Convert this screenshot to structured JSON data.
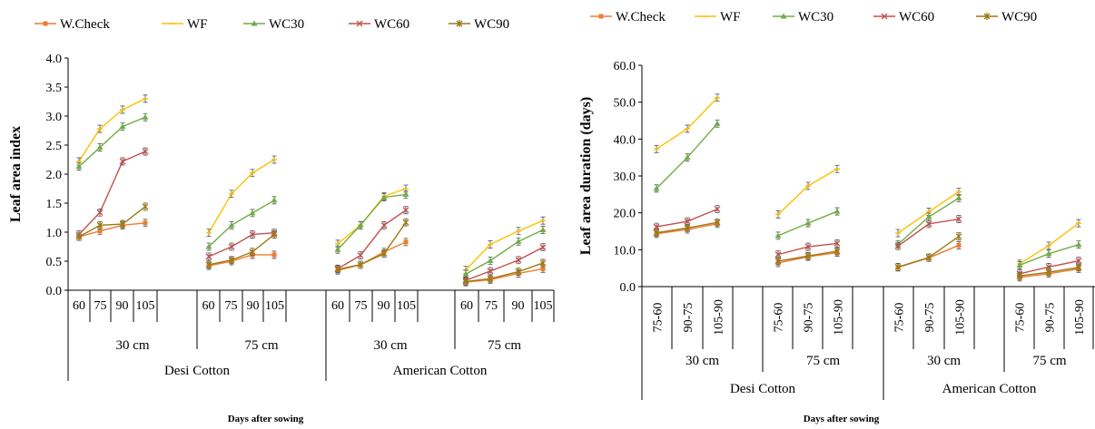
{
  "colors": {
    "W.Check": "#ED7D31",
    "WF": "#FFC000",
    "WC30": "#70AD47",
    "WC60": "#C0504D",
    "WC90": "#9C7A17"
  },
  "chart_data": [
    {
      "type": "line",
      "ylabel": "Leaf area index",
      "xlabel": "Days after sowing",
      "ylim": [
        0,
        4
      ],
      "yticks": [
        "0.0",
        "0.5",
        "1.0",
        "1.5",
        "2.0",
        "2.5",
        "3.0",
        "3.5",
        "4.0"
      ],
      "legend": [
        "W.Check",
        "WF",
        "WC30",
        "WC60",
        "WC90"
      ],
      "crops": [
        "Desi Cotton",
        "American Cotton"
      ],
      "groups": [
        {
          "spacing": "30 cm",
          "ticks": [
            "60",
            "75",
            "90",
            "105"
          ],
          "series": {
            "W.Check": [
              0.92,
              1.02,
              1.12,
              1.16
            ],
            "WF": [
              2.22,
              2.78,
              3.11,
              3.3
            ],
            "WC30": [
              2.13,
              2.46,
              2.82,
              2.98
            ],
            "WC60": [
              0.96,
              1.34,
              2.22,
              2.39
            ],
            "WC90": [
              0.92,
              1.12,
              1.14,
              1.44
            ]
          }
        },
        {
          "spacing": "75 cm",
          "ticks": [
            "60",
            "75",
            "90",
            "105"
          ],
          "series": {
            "W.Check": [
              0.42,
              0.5,
              0.61,
              0.61
            ],
            "WF": [
              0.99,
              1.66,
              2.02,
              2.25
            ],
            "WC30": [
              0.75,
              1.12,
              1.33,
              1.55
            ],
            "WC60": [
              0.58,
              0.75,
              0.96,
              0.99
            ],
            "WC90": [
              0.44,
              0.52,
              0.66,
              0.96
            ]
          }
        },
        {
          "spacing": "30 cm",
          "ticks": [
            "60",
            "75",
            "90",
            "105"
          ],
          "series": {
            "W.Check": [
              0.34,
              0.44,
              0.66,
              0.83
            ],
            "WF": [
              0.8,
              1.12,
              1.62,
              1.75
            ],
            "WC30": [
              0.7,
              1.12,
              1.6,
              1.65
            ],
            "WC60": [
              0.37,
              0.6,
              1.12,
              1.38
            ],
            "WC90": [
              0.36,
              0.44,
              0.63,
              1.17
            ]
          }
        },
        {
          "spacing": "75 cm",
          "ticks": [
            "60",
            "75",
            "90",
            "105"
          ],
          "series": {
            "W.Check": [
              0.14,
              0.18,
              0.29,
              0.37
            ],
            "WF": [
              0.35,
              0.79,
              1.02,
              1.2
            ],
            "WC30": [
              0.28,
              0.51,
              0.84,
              1.04
            ],
            "WC60": [
              0.17,
              0.33,
              0.52,
              0.74
            ],
            "WC90": [
              0.15,
              0.2,
              0.32,
              0.47
            ]
          }
        }
      ]
    },
    {
      "type": "line",
      "ylabel": "Leaf area duration  (days)",
      "xlabel": "Days after sowing",
      "ylim": [
        0,
        60
      ],
      "yticks": [
        "0.0",
        "10.0",
        "20.0",
        "30.0",
        "40.0",
        "50.0",
        "60.0"
      ],
      "legend": [
        "W.Check",
        "WF",
        "WC30",
        "WC60",
        "WC90"
      ],
      "crops": [
        "Desi Cotton",
        "American Cotton"
      ],
      "groups": [
        {
          "spacing": "30 cm",
          "ticks": [
            "75-60",
            "90-75",
            "105-90"
          ],
          "series": {
            "W.Check": [
              14.3,
              15.5,
              17.0
            ],
            "WF": [
              37.3,
              42.8,
              51.2
            ],
            "WC30": [
              26.6,
              35.0,
              44.2
            ],
            "WC60": [
              16.2,
              17.7,
              21.0
            ],
            "WC90": [
              14.6,
              15.9,
              17.4
            ]
          }
        },
        {
          "spacing": "75 cm",
          "ticks": [
            "75-60",
            "90-75",
            "105-90"
          ],
          "series": {
            "W.Check": [
              6.4,
              8.1,
              9.2
            ],
            "WF": [
              19.6,
              27.3,
              31.9
            ],
            "WC30": [
              13.8,
              17.2,
              20.4
            ],
            "WC60": [
              8.7,
              10.8,
              11.7
            ],
            "WC90": [
              6.9,
              8.3,
              9.6
            ]
          }
        },
        {
          "spacing": "30 cm",
          "ticks": [
            "75-60",
            "90-75",
            "105-90"
          ],
          "series": {
            "W.Check": [
              5.2,
              7.8,
              11.2
            ],
            "WF": [
              14.5,
              20.3,
              25.7
            ],
            "WC30": [
              11.5,
              18.9,
              24.0
            ],
            "WC60": [
              11.0,
              17.0,
              18.3
            ],
            "WC90": [
              5.3,
              7.9,
              13.6
            ]
          }
        },
        {
          "spacing": "75 cm",
          "ticks": [
            "75-60",
            "90-75",
            "105-90"
          ],
          "series": {
            "W.Check": [
              2.5,
              3.5,
              4.8
            ],
            "WF": [
              6.2,
              11.1,
              17.2
            ],
            "WC30": [
              5.8,
              8.9,
              11.4
            ],
            "WC60": [
              3.5,
              5.3,
              7.0
            ],
            "WC90": [
              2.9,
              3.9,
              5.2
            ]
          }
        }
      ]
    }
  ]
}
